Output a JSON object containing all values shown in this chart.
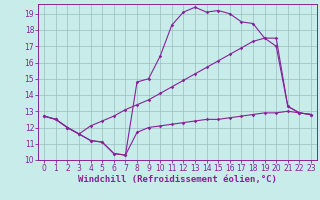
{
  "title": "",
  "xlabel": "Windchill (Refroidissement éolien,°C)",
  "bg_color": "#c8ecea",
  "grid_color": "#9bbfbe",
  "line_color": "#882299",
  "xlim": [
    -0.5,
    23.5
  ],
  "ylim": [
    10.0,
    19.6
  ],
  "xticks": [
    0,
    1,
    2,
    3,
    4,
    5,
    6,
    7,
    8,
    9,
    10,
    11,
    12,
    13,
    14,
    15,
    16,
    17,
    18,
    19,
    20,
    21,
    22,
    23
  ],
  "yticks": [
    10,
    11,
    12,
    13,
    14,
    15,
    16,
    17,
    18,
    19
  ],
  "line1_x": [
    0,
    1,
    2,
    3,
    4,
    5,
    6,
    7,
    8,
    9,
    10,
    11,
    12,
    13,
    14,
    15,
    16,
    17,
    18,
    19,
    20,
    21,
    22,
    23
  ],
  "line1_y": [
    12.7,
    12.5,
    12.0,
    11.6,
    11.2,
    11.1,
    10.4,
    10.3,
    11.7,
    12.0,
    12.1,
    12.2,
    12.3,
    12.4,
    12.5,
    12.5,
    12.6,
    12.7,
    12.8,
    12.9,
    12.9,
    13.0,
    12.9,
    12.8
  ],
  "line2_x": [
    0,
    1,
    2,
    3,
    4,
    5,
    6,
    7,
    8,
    9,
    10,
    11,
    12,
    13,
    14,
    15,
    16,
    17,
    18,
    19,
    20,
    21,
    22,
    23
  ],
  "line2_y": [
    12.7,
    12.5,
    12.0,
    11.6,
    11.2,
    11.1,
    10.4,
    10.3,
    14.8,
    15.0,
    16.4,
    18.3,
    19.1,
    19.4,
    19.1,
    19.2,
    19.0,
    18.5,
    18.4,
    17.5,
    17.0,
    13.3,
    12.9,
    12.8
  ],
  "line3_x": [
    0,
    1,
    2,
    3,
    4,
    5,
    6,
    7,
    8,
    9,
    10,
    11,
    12,
    13,
    14,
    15,
    16,
    17,
    18,
    19,
    20,
    21,
    22,
    23
  ],
  "line3_y": [
    12.7,
    12.5,
    12.0,
    11.6,
    12.1,
    12.4,
    12.7,
    13.1,
    13.4,
    13.7,
    14.1,
    14.5,
    14.9,
    15.3,
    15.7,
    16.1,
    16.5,
    16.9,
    17.3,
    17.5,
    17.5,
    13.3,
    12.9,
    12.8
  ],
  "tick_fontsize": 5.5,
  "xlabel_fontsize": 6.5
}
